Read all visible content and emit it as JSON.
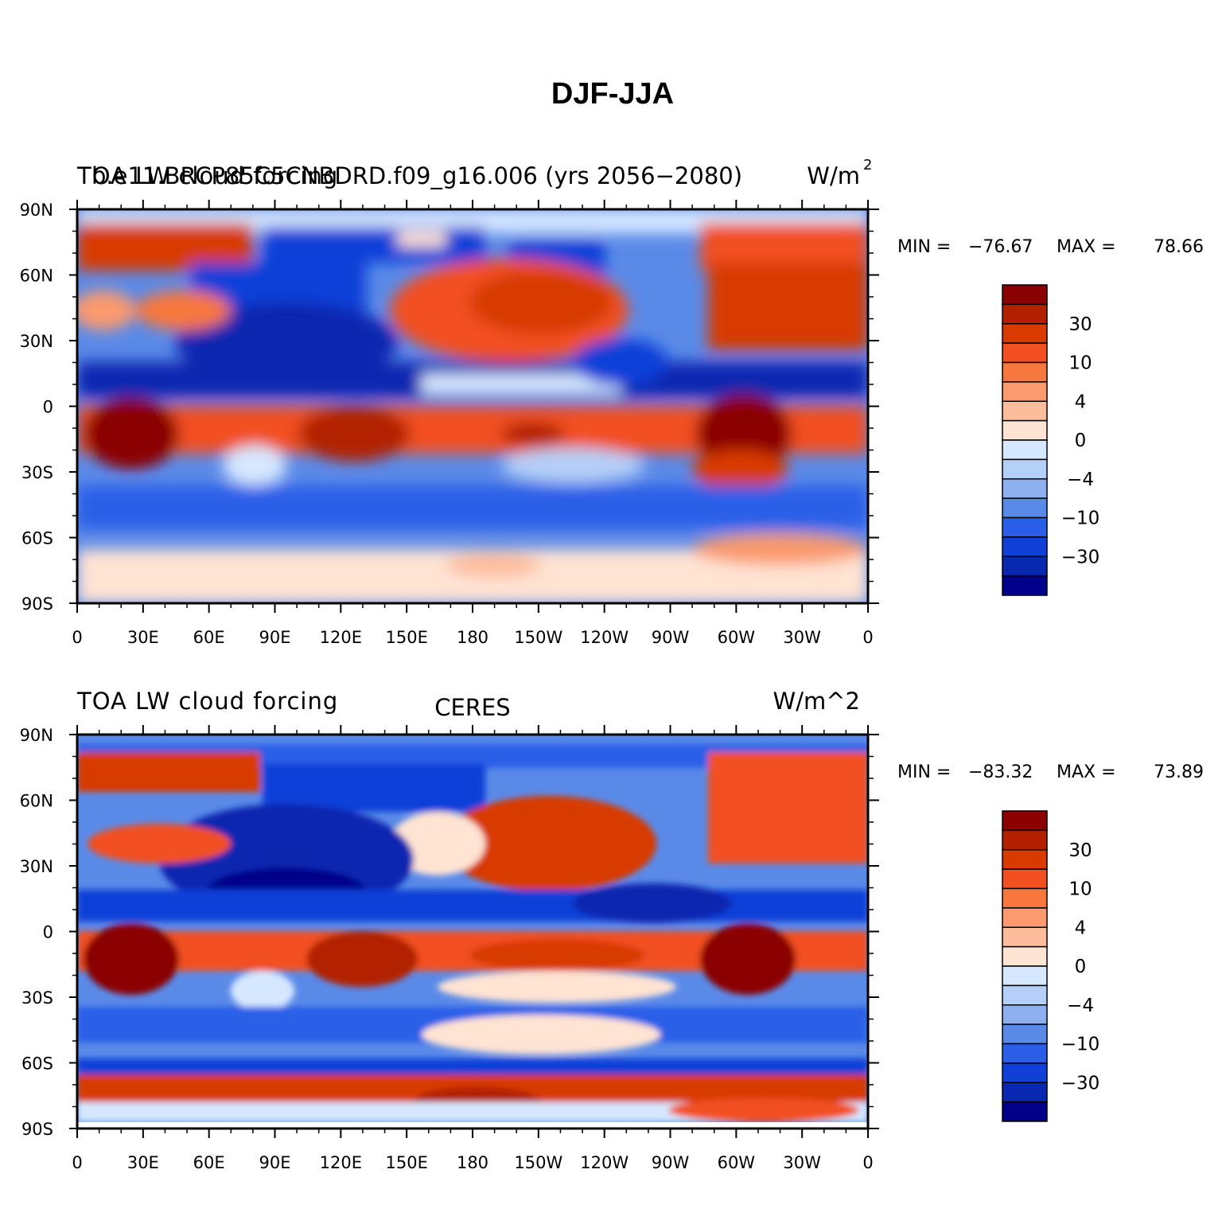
{
  "figure_title": "DJF-JJA",
  "lat_ticks": [
    "90N",
    "60N",
    "30N",
    "0",
    "30S",
    "60S",
    "90S"
  ],
  "lon_ticks": [
    "0",
    "30E",
    "60E",
    "90E",
    "120E",
    "150E",
    "180",
    "150W",
    "120W",
    "90W",
    "60W",
    "30W",
    "0"
  ],
  "colorbar": {
    "colors": [
      "#8b0000",
      "#b22000",
      "#d83a00",
      "#f25020",
      "#f7773d",
      "#fa9a6e",
      "#fdbc9c",
      "#ffe3d3",
      "#d6e8ff",
      "#b4cff8",
      "#8fb0f0",
      "#5a8ae8",
      "#2a5ee8",
      "#1040d8",
      "#0828b0",
      "#00008a"
    ],
    "tick_labels": [
      "30",
      "10",
      "4",
      "0",
      "−4",
      "−10",
      "−30"
    ]
  },
  "panels": [
    {
      "left_title": "TOA LW cloud forcing",
      "overlay_title": "b.e11.BRCP85C5CNBDRD.f09_g16.006 (yrs 2056−2080)",
      "center_title": "",
      "units": "W/m",
      "units_sup": "2",
      "min_label": "MIN =",
      "min_value": "−76.67",
      "max_label": "MAX =",
      "max_value": "78.66"
    },
    {
      "left_title": "TOA LW cloud forcing",
      "overlay_title": "",
      "center_title": "CERES",
      "units": "W/m^2",
      "units_sup": "",
      "min_label": "MIN =",
      "min_value": "−83.32",
      "max_label": "MAX =",
      "max_value": "73.89"
    }
  ]
}
